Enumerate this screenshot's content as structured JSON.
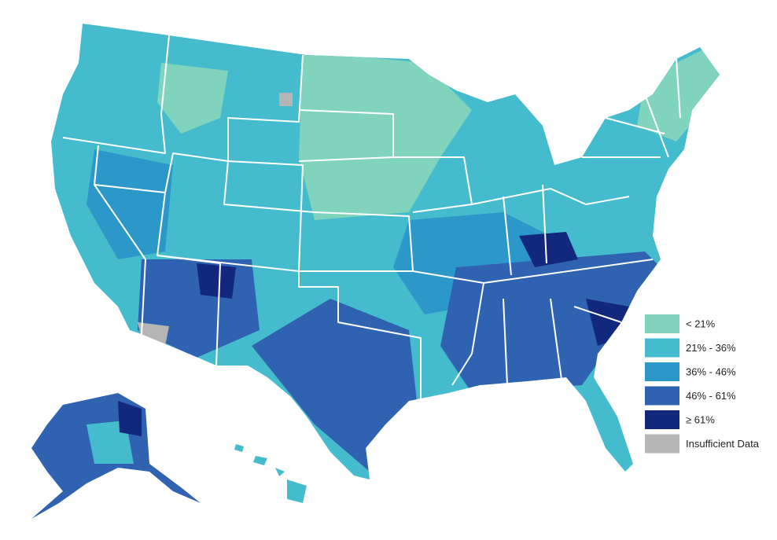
{
  "legend": {
    "items": [
      {
        "label": "< 21%",
        "color": "#80d3bd"
      },
      {
        "label": "21% - 36%",
        "color": "#45bccd"
      },
      {
        "label": "36% - 46%",
        "color": "#2b98c9"
      },
      {
        "label": "46% - 61%",
        "color": "#2f62b0"
      },
      {
        "label": "≥ 61%",
        "color": "#12287c"
      },
      {
        "label": "Insufficient Data",
        "color": "#b5b5b5"
      }
    ]
  }
}
